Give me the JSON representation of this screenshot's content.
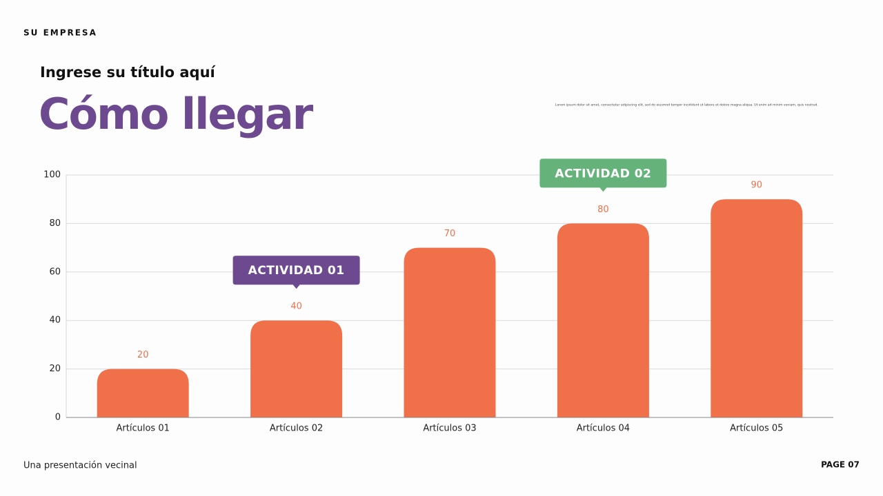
{
  "header": {
    "company": "SU EMPRESA",
    "subtitle": "Ingrese su título aquí",
    "title": "Cómo llegar",
    "description": "Lorem ipsum dolor sit amet, consectetur adipiscing elit, sed do eiusmod tempor incididunt ut labore et dolore magna aliqua. Ut enim ad minim veniam, quis nostrud."
  },
  "footer": {
    "text": "Una presentación vecinal",
    "page": "PAGE 07"
  },
  "chart_data": {
    "type": "bar",
    "categories": [
      "Artículos 01",
      "Artículos 02",
      "Artículos 03",
      "Artículos 04",
      "Artículos 05"
    ],
    "values": [
      20,
      40,
      70,
      80,
      90
    ],
    "color": "#ef7049",
    "ylim": [
      0,
      100
    ],
    "yticks": [
      0,
      20,
      40,
      60,
      80,
      100
    ],
    "grid": true,
    "annotations": [
      {
        "text": "ACTIVIDAD 01",
        "category": "Artículos 02",
        "color": "#6d4a8f"
      },
      {
        "text": "ACTIVIDAD 02",
        "category": "Artículos 04",
        "color": "#65b27b"
      }
    ]
  }
}
